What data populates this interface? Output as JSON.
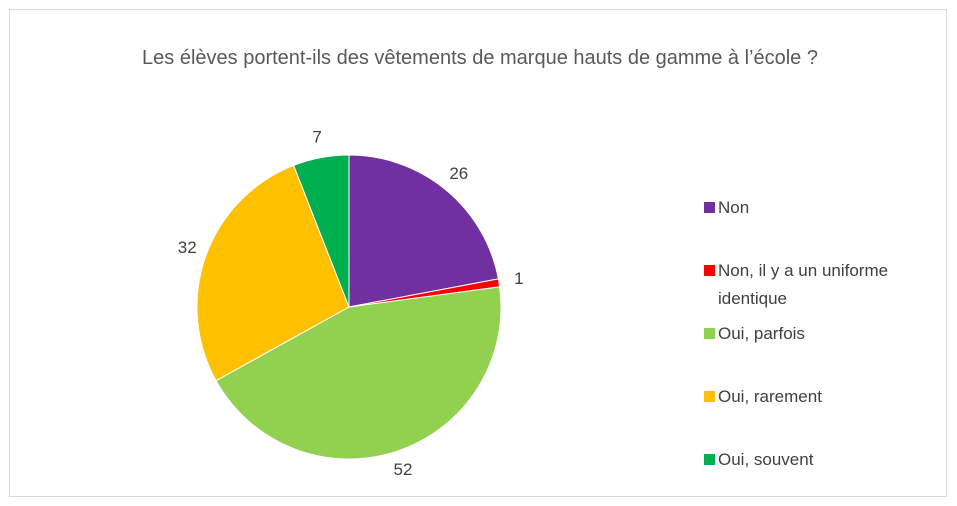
{
  "chart_data": {
    "type": "pie",
    "title": "Les élèves portent-ils des vêtements de marque hauts de gamme à l’école ?",
    "categories": [
      "Non",
      "Non, il y a un uniforme identique",
      "Oui, parfois",
      "Oui, rarement",
      "Oui, souvent"
    ],
    "values": [
      26,
      1,
      52,
      32,
      7
    ],
    "colors": [
      "#7030a0",
      "#ff0000",
      "#92d050",
      "#ffc000",
      "#00b050"
    ],
    "legend": "right"
  }
}
